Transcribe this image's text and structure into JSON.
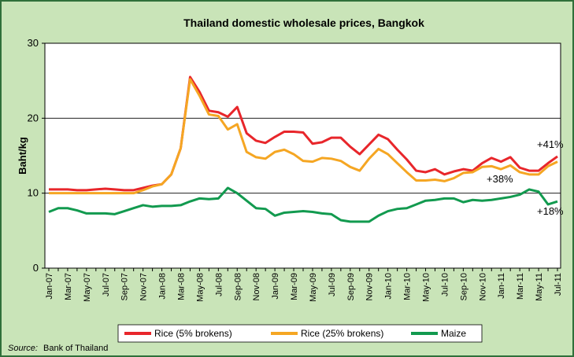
{
  "chart_data": {
    "type": "line",
    "title": "Thailand domestic wholesale prices, Bangkok",
    "y_label": "Baht/kg",
    "categories": [
      "Jan-07",
      null,
      "Mar-07",
      null,
      "May-07",
      null,
      "Jul-07",
      null,
      "Sep-07",
      null,
      "Nov-07",
      null,
      "Jan-08",
      null,
      "Mar-08",
      null,
      "May-08",
      null,
      "Jul-08",
      null,
      "Sep-08",
      null,
      "Nov-08",
      null,
      "Jan-09",
      null,
      "Mar-09",
      null,
      "May-09",
      null,
      "Jul-09",
      null,
      "Sep-09",
      null,
      "Nov-09",
      null,
      "Jan-10",
      null,
      "Mar-10",
      null,
      "May-10",
      null,
      "Jul-10",
      null,
      "Sep-10",
      null,
      "Nov-10",
      null,
      "Jan-11",
      null,
      "Mar-11",
      null,
      "May-11",
      null,
      "Jul-11"
    ],
    "series": [
      {
        "name": "Rice (5% brokens)",
        "color": "#e8262b",
        "values": [
          10.5,
          10.5,
          10.5,
          10.4,
          10.4,
          10.5,
          10.6,
          10.5,
          10.4,
          10.4,
          10.7,
          11.0,
          11.2,
          12.5,
          16.0,
          25.5,
          23.5,
          21.0,
          20.8,
          20.2,
          21.5,
          18.0,
          17.0,
          16.7,
          17.5,
          18.2,
          18.2,
          18.1,
          16.6,
          16.8,
          17.4,
          17.4,
          16.2,
          15.2,
          16.5,
          17.8,
          17.2,
          15.8,
          14.5,
          13.0,
          12.8,
          13.2,
          12.5,
          12.9,
          13.2,
          13.0,
          14.0,
          14.7,
          14.2,
          14.8,
          13.4,
          13.0,
          13.0,
          14.0,
          14.9
        ]
      },
      {
        "name": "Rice (25% brokens)",
        "color": "#f5a623",
        "values": [
          10.0,
          10.0,
          10.0,
          10.0,
          10.0,
          10.0,
          10.0,
          10.0,
          10.0,
          10.0,
          10.4,
          10.9,
          11.2,
          12.5,
          16.0,
          25.2,
          23.0,
          20.5,
          20.3,
          18.5,
          19.2,
          15.5,
          14.8,
          14.6,
          15.5,
          15.8,
          15.2,
          14.3,
          14.2,
          14.7,
          14.6,
          14.3,
          13.5,
          13.0,
          14.6,
          15.9,
          15.2,
          14.0,
          12.8,
          11.7,
          11.7,
          11.8,
          11.6,
          12.0,
          12.7,
          12.8,
          13.5,
          13.6,
          13.2,
          13.7,
          12.8,
          12.5,
          12.5,
          13.6,
          14.2
        ]
      },
      {
        "name": "Maize",
        "color": "#129a4f",
        "values": [
          7.5,
          8.0,
          8.0,
          7.7,
          7.3,
          7.3,
          7.3,
          7.2,
          7.6,
          8.0,
          8.4,
          8.2,
          8.3,
          8.3,
          8.4,
          8.9,
          9.3,
          9.2,
          9.3,
          10.7,
          10.0,
          9.0,
          8.0,
          7.9,
          7.0,
          7.4,
          7.5,
          7.6,
          7.5,
          7.3,
          7.2,
          6.4,
          6.2,
          6.2,
          6.2,
          7.0,
          7.6,
          7.9,
          8.0,
          8.5,
          9.0,
          9.1,
          9.3,
          9.3,
          8.8,
          9.1,
          9.0,
          9.1,
          9.3,
          9.5,
          9.8,
          10.5,
          10.2,
          8.5,
          8.9
        ]
      }
    ],
    "annotations": [
      "+41%",
      "+38%",
      "+18%"
    ],
    "source_label": "Source:",
    "source": "Bank of Thailand",
    "ylim": [
      0,
      30
    ],
    "yticks": [
      0,
      10,
      20,
      30
    ],
    "grid": true,
    "legend": "bottom"
  }
}
